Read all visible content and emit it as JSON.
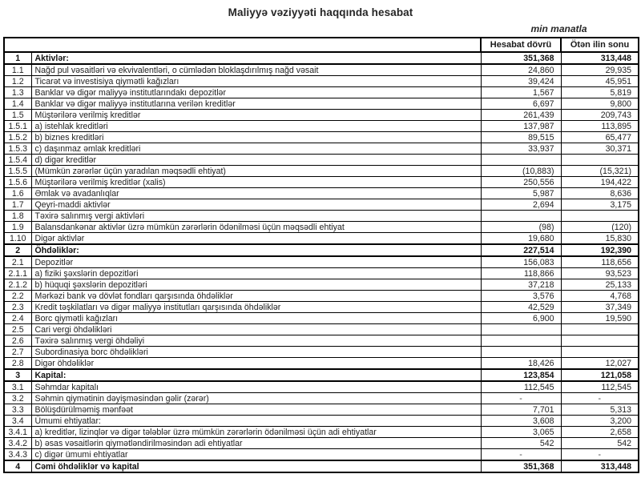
{
  "report": {
    "title": "Maliyyə vəziyyəti haqqında hesabat",
    "unit_note": "min manatla",
    "columns": [
      "Hesabat dövrü",
      "Ötən ilin sonu"
    ]
  },
  "rows": [
    {
      "n": "1",
      "label": "Aktivlər:",
      "v1": "351,368",
      "v2": "313,448",
      "section": true
    },
    {
      "n": "1.1",
      "label": "Nağd pul vəsaitləri və  ekvivalentləri, o cümlədən bloklaşdırılmış nağd vəsait",
      "v1": "24,860",
      "v2": "29,935"
    },
    {
      "n": "1.2",
      "label": "Ticarət və investisiya qiymətli kağızları",
      "v1": "39,424",
      "v2": "45,951"
    },
    {
      "n": "1.3",
      "label": "Banklar və digər maliyyə institutlarındakı depozitlər",
      "v1": "1,567",
      "v2": "5,819"
    },
    {
      "n": "1.4",
      "label": "Banklar və digər maliyyə institutlarına verilən kreditlər",
      "v1": "6,697",
      "v2": "9,800"
    },
    {
      "n": "1.5",
      "label": "Müştərilərə verilmiş kreditlər",
      "v1": "261,439",
      "v2": "209,743"
    },
    {
      "n": "1.5.1",
      "label": "a) istehlak kreditləri",
      "v1": "137,987",
      "v2": "113,895"
    },
    {
      "n": "1.5.2",
      "label": "b) biznes kreditləri",
      "v1": "89,515",
      "v2": "65,477"
    },
    {
      "n": "1.5.3",
      "label": "c) daşınmaz əmlak kreditləri",
      "v1": "33,937",
      "v2": "30,371"
    },
    {
      "n": "1.5.4",
      "label": "d) digər kreditlər",
      "v1": "",
      "v2": ""
    },
    {
      "n": "1.5.5",
      "label": "(Mümkün zərərlər üçün yaradılan məqsədli ehtiyat)",
      "v1": "(10,883)",
      "v2": "(15,321)"
    },
    {
      "n": "1.5.6",
      "label": "Müştərilərə verilmiş kreditlər (xalis)",
      "v1": "250,556",
      "v2": "194,422"
    },
    {
      "n": "1.6",
      "label": "Əmlak və avadanlıqlar",
      "v1": "5,987",
      "v2": "8,636"
    },
    {
      "n": "1.7",
      "label": "Qeyri-maddi aktivlər",
      "v1": "2,694",
      "v2": "3,175"
    },
    {
      "n": "1.8",
      "label": "Təxirə salınmış vergi aktivləri",
      "v1": "",
      "v2": ""
    },
    {
      "n": "1.9",
      "label": "Balansdankənar aktivlər üzrə mümkün zərərlərin ödənilməsi üçün məqsədli ehtiyat",
      "v1": "(98)",
      "v2": "(120)"
    },
    {
      "n": "1.10",
      "label": "Digər aktivlər",
      "v1": "19,680",
      "v2": "15,830"
    },
    {
      "n": "2",
      "label": "Öhdəliklər:",
      "v1": "227,514",
      "v2": "192,390",
      "section": true
    },
    {
      "n": "2.1",
      "label": "Depozitlər",
      "v1": "156,083",
      "v2": "118,656"
    },
    {
      "n": "2.1.1",
      "label": "a) fiziki şəxslərin depozitləri",
      "v1": "118,866",
      "v2": "93,523"
    },
    {
      "n": "2.1.2",
      "label": "b) hüquqi şəxslərin depozitləri",
      "v1": "37,218",
      "v2": "25,133"
    },
    {
      "n": "2.2",
      "label": "Mərkəzi bank və dövlət fondları qarşısında öhdəliklər",
      "v1": "3,576",
      "v2": "4,768"
    },
    {
      "n": "2.3",
      "label": "Kredit təşkilatları və digər maliyyə institutları qarşısında öhdəliklər",
      "v1": "42,529",
      "v2": "37,349"
    },
    {
      "n": "2.4",
      "label": "Borc qiymətli kağızları",
      "v1": "6,900",
      "v2": "19,590"
    },
    {
      "n": "2.5",
      "label": "Cari vergi öhdəlikləri",
      "v1": "",
      "v2": ""
    },
    {
      "n": "2.6",
      "label": "Təxirə salınmış vergi öhdəliyi",
      "v1": "",
      "v2": ""
    },
    {
      "n": "2.7",
      "label": "Subordinasiya borc öhdəlikləri",
      "v1": "",
      "v2": ""
    },
    {
      "n": "2.8",
      "label": "Digər öhdəliklər",
      "v1": "18,426",
      "v2": "12,027"
    },
    {
      "n": "3",
      "label": "Kapital:",
      "v1": "123,854",
      "v2": "121,058",
      "section": true
    },
    {
      "n": "3.1",
      "label": "Səhmdar kapitalı",
      "v1": "112,545",
      "v2": "112,545"
    },
    {
      "n": "3.2",
      "label": "Səhmin qiymətinin dəyişməsindən gəlir (zərər)",
      "v1": "-",
      "v2": "-"
    },
    {
      "n": "3.3",
      "label": "Bölüşdürülməmiş mənfəət",
      "v1": "7,701",
      "v2": "5,313"
    },
    {
      "n": "3.4",
      "label": "Ümumi ehtiyatlar:",
      "v1": "3,608",
      "v2": "3,200"
    },
    {
      "n": "3.4.1",
      "label": "a) kreditlər, lizinqlər və digər tələblər üzrə mümkün zərərlərin ödənilməsi üçün adi ehtiyatlar",
      "v1": "3,065",
      "v2": "2,658"
    },
    {
      "n": "3.4.2",
      "label": "b) əsas vəsaitlərin qiymətləndirilməsindən adi ehtiyatlar",
      "v1": "542",
      "v2": "542"
    },
    {
      "n": "3.4.3",
      "label": "c) digər ümumi ehtiyatlar",
      "v1": "-",
      "v2": "-"
    },
    {
      "n": "4",
      "label": "Cəmi öhdəliklər və kapital",
      "v1": "351,368",
      "v2": "313,448",
      "section": true
    }
  ]
}
